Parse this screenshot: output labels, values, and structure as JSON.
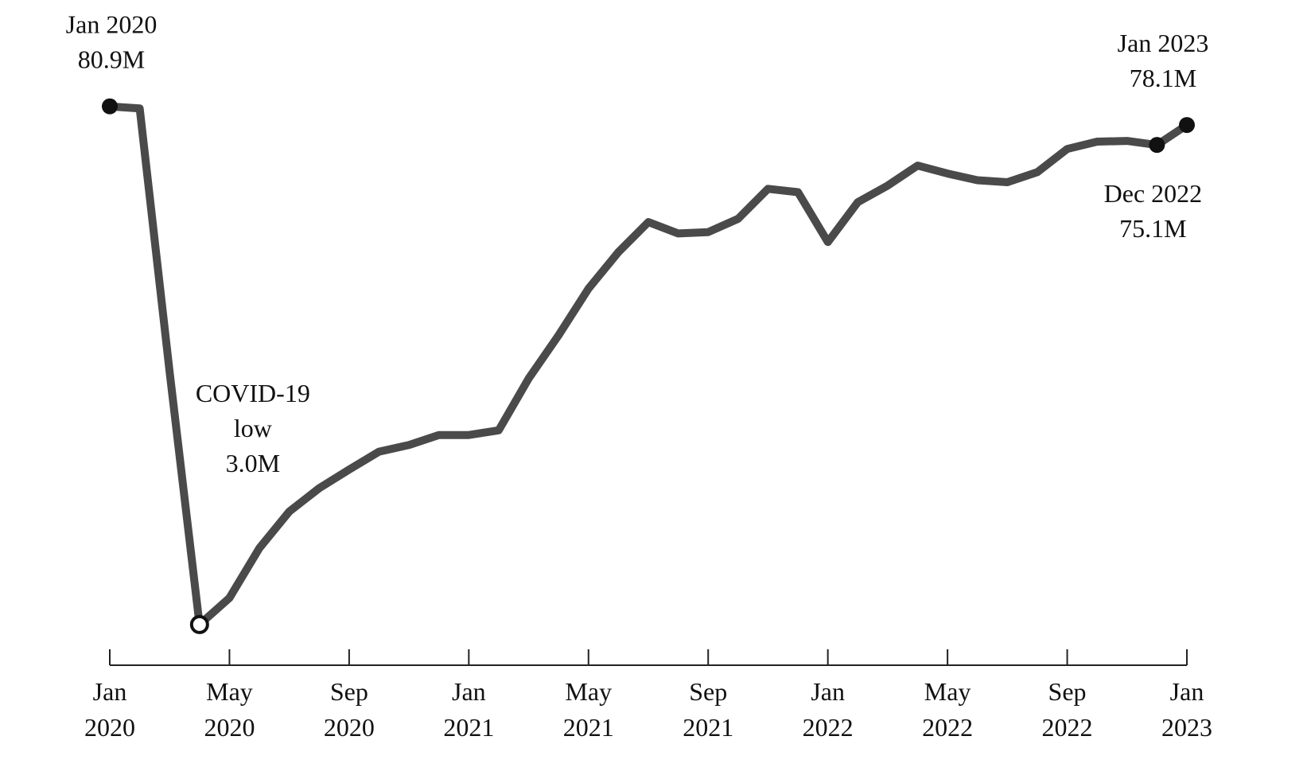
{
  "chart_data": {
    "type": "line",
    "title": "",
    "xlabel": "",
    "ylabel": "",
    "x": [
      "2020-01",
      "2020-02",
      "2020-03",
      "2020-04",
      "2020-05",
      "2020-06",
      "2020-07",
      "2020-08",
      "2020-09",
      "2020-10",
      "2020-11",
      "2020-12",
      "2021-01",
      "2021-02",
      "2021-03",
      "2021-04",
      "2021-05",
      "2021-06",
      "2021-07",
      "2021-08",
      "2021-09",
      "2021-10",
      "2021-11",
      "2021-12",
      "2022-01",
      "2022-02",
      "2022-03",
      "2022-04",
      "2022-05",
      "2022-06",
      "2022-07",
      "2022-08",
      "2022-09",
      "2022-10",
      "2022-11",
      "2022-12",
      "2023-01"
    ],
    "series": [
      {
        "values": [
          80.9,
          80.6,
          41.0,
          3.0,
          7.0,
          14.5,
          20.0,
          23.5,
          26.3,
          29.0,
          30.0,
          31.5,
          31.5,
          32.2,
          40.0,
          46.5,
          53.5,
          59.0,
          63.5,
          61.8,
          62.0,
          64.0,
          68.5,
          68.0,
          60.5,
          66.5,
          69.0,
          72.0,
          70.8,
          69.8,
          69.5,
          71.0,
          74.5,
          75.6,
          75.7,
          75.1,
          78.1
        ],
        "color": "#4a4a4a"
      }
    ],
    "ylim": [
      0,
      90
    ],
    "grid": false,
    "x_ticks": [
      {
        "month": "2020-01",
        "line1": "Jan",
        "line2": "2020"
      },
      {
        "month": "2020-05",
        "line1": "May",
        "line2": "2020"
      },
      {
        "month": "2020-09",
        "line1": "Sep",
        "line2": "2020"
      },
      {
        "month": "2021-01",
        "line1": "Jan",
        "line2": "2021"
      },
      {
        "month": "2021-05",
        "line1": "May",
        "line2": "2021"
      },
      {
        "month": "2021-09",
        "line1": "Sep",
        "line2": "2021"
      },
      {
        "month": "2022-01",
        "line1": "Jan",
        "line2": "2022"
      },
      {
        "month": "2022-05",
        "line1": "May",
        "line2": "2022"
      },
      {
        "month": "2022-09",
        "line1": "Sep",
        "line2": "2022"
      },
      {
        "month": "2023-01",
        "line1": "Jan",
        "line2": "2023"
      }
    ],
    "annotations": [
      {
        "month": "2020-01",
        "value": 80.9,
        "marker": "filled",
        "lines": [
          "Jan 2020",
          "80.9M"
        ],
        "placement": "above"
      },
      {
        "month": "2020-04",
        "value": 3.0,
        "marker": "hollow",
        "lines": [
          "COVID-19",
          "low",
          "3.0M"
        ],
        "placement": "upper-right"
      },
      {
        "month": "2022-12",
        "value": 75.1,
        "marker": "filled",
        "lines": [
          "Dec 2022",
          "75.1M"
        ],
        "placement": "below"
      },
      {
        "month": "2023-01",
        "value": 78.1,
        "marker": "filled",
        "lines": [
          "Jan 2023",
          "78.1M"
        ],
        "placement": "above"
      }
    ]
  }
}
